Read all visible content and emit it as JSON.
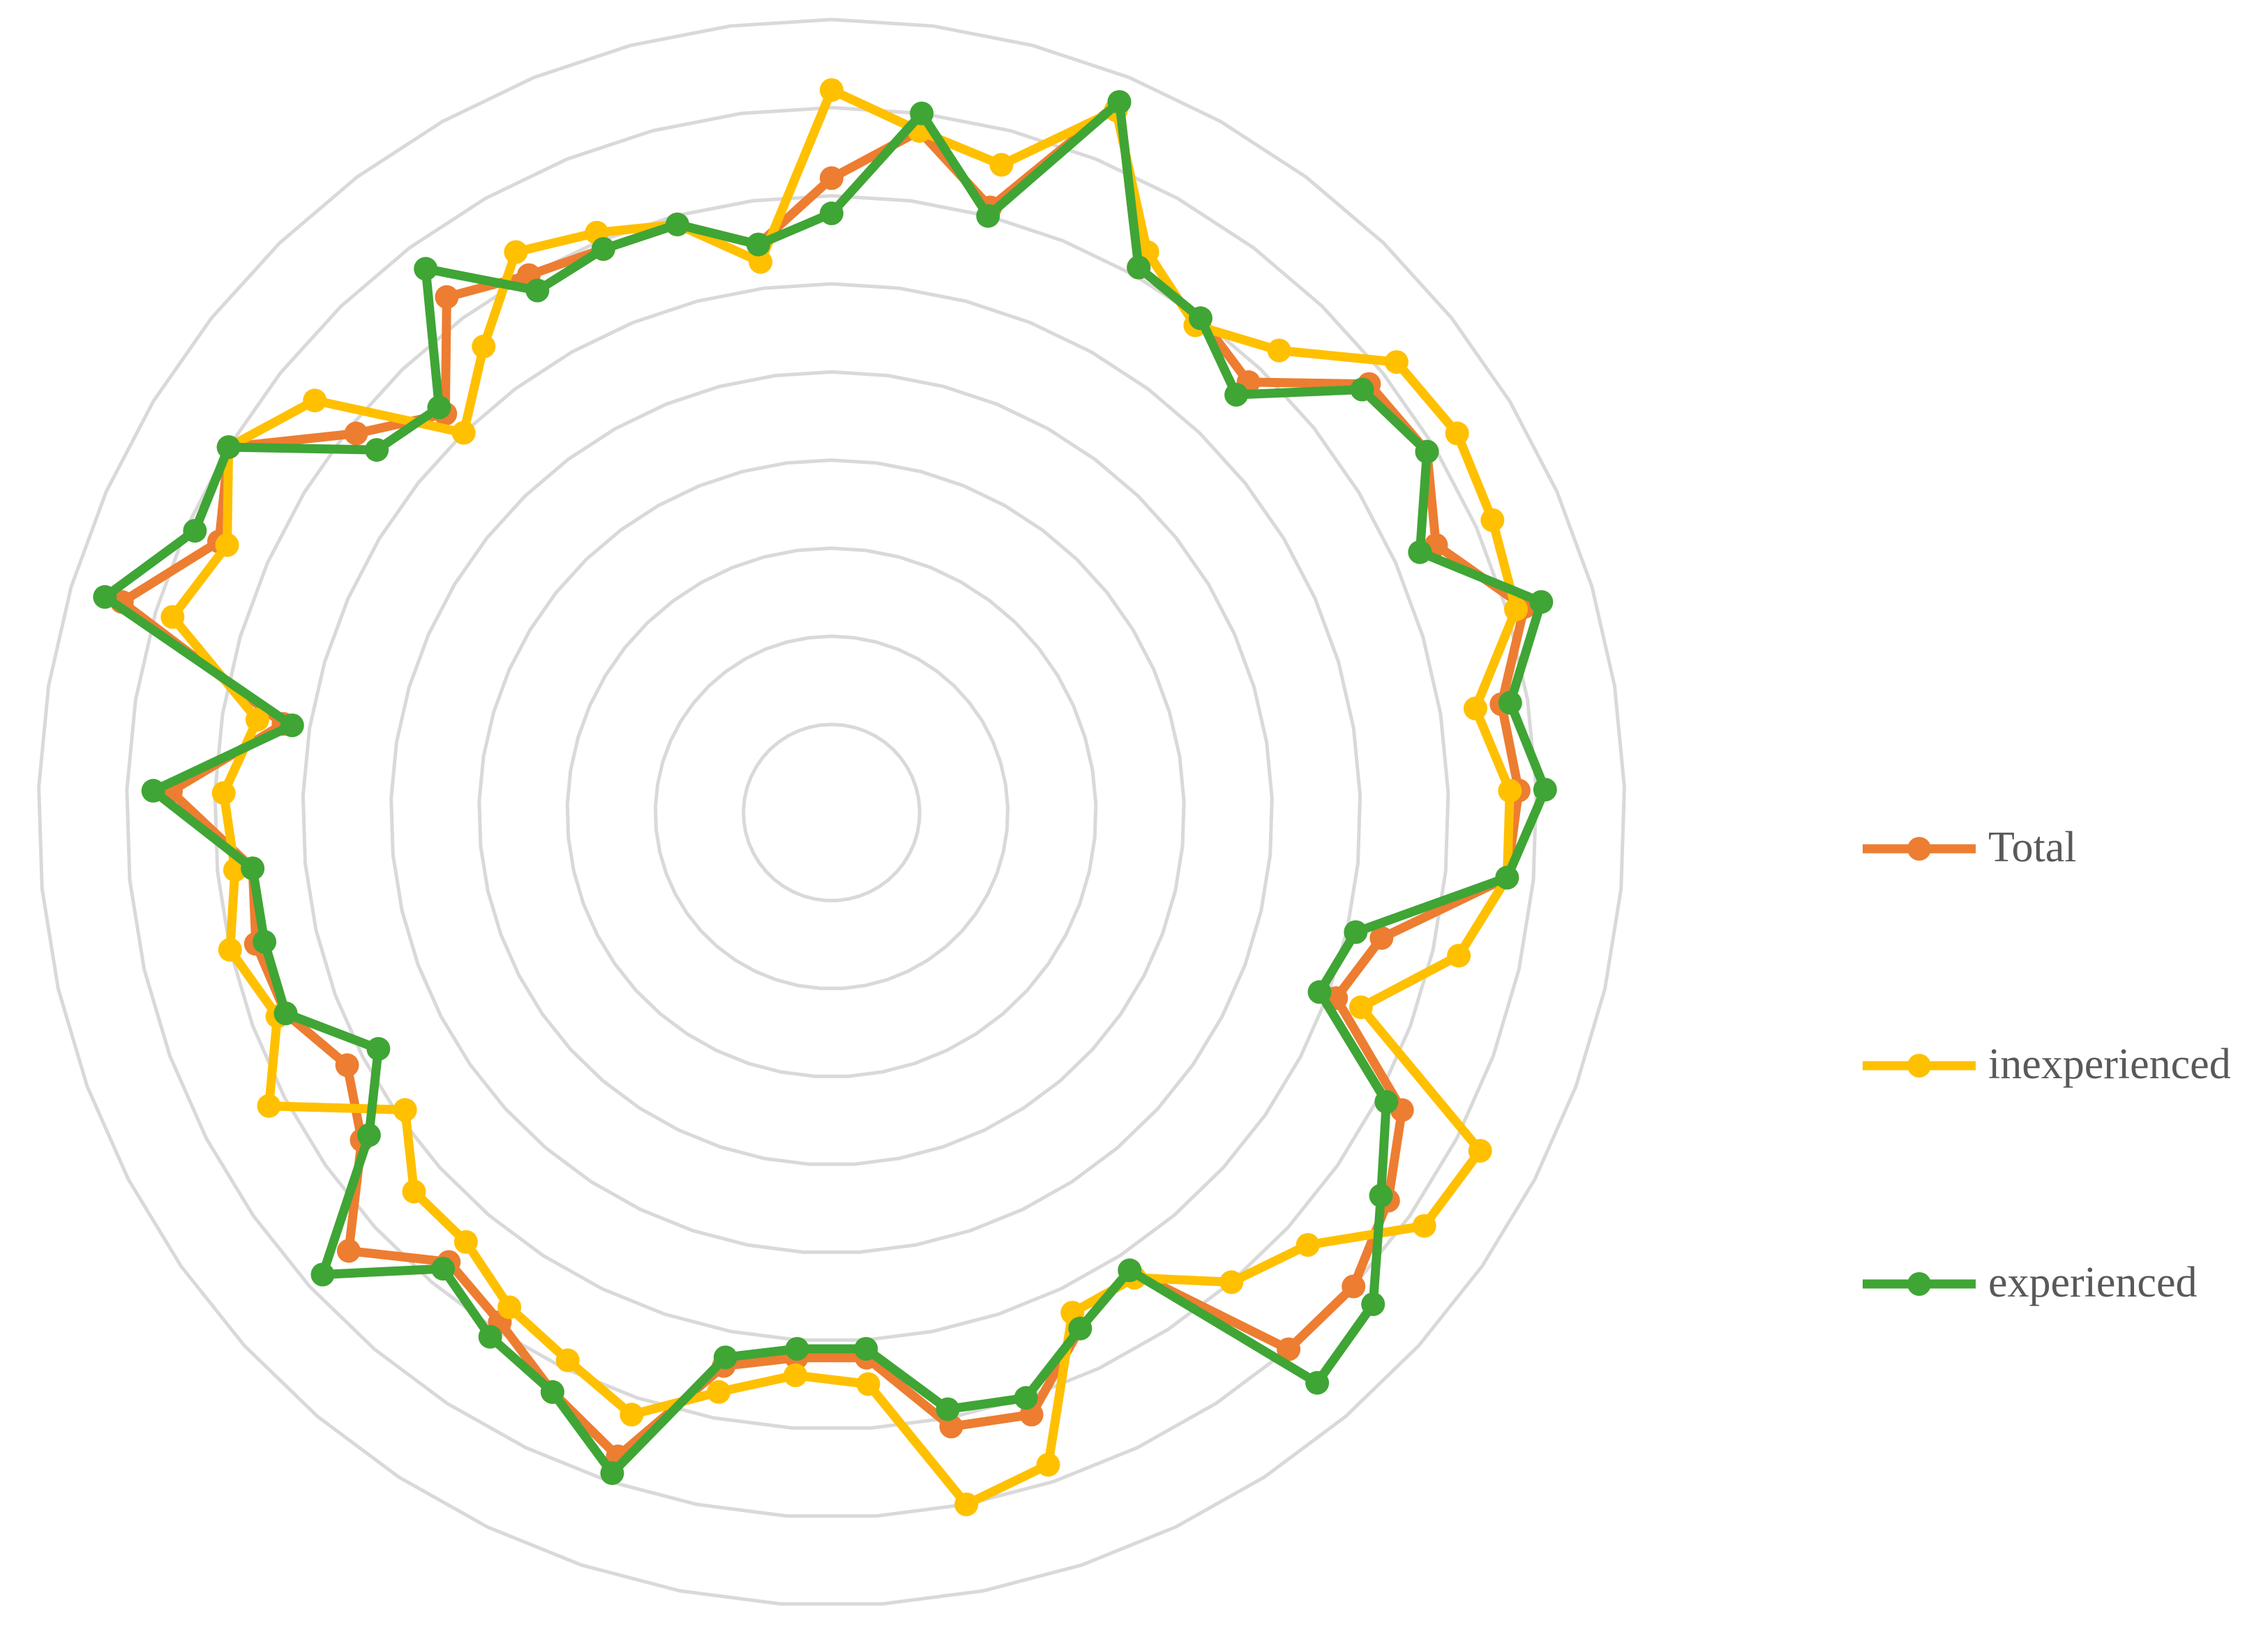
{
  "chart_data": {
    "type": "radar",
    "rlim": [
      0,
      9
    ],
    "rticks": [
      1,
      2,
      3,
      4,
      5,
      6,
      7,
      8,
      9
    ],
    "grid": true,
    "legend": "right",
    "series": [
      {
        "name": "Total",
        "color": "#ED7D31",
        "values": [
          7.2,
          7.8,
          7.1,
          8.7,
          7.1,
          7.0,
          6.8,
          7.8,
          7.9,
          7.5,
          8.2,
          7.7,
          7.8,
          7.7,
          6.4,
          6.1,
          7.3,
          7.7,
          8.0,
          8.0,
          6.2,
          6.5,
          7.2,
          7.1,
          6.2,
          6.2,
          6.4,
          7.7,
          7.3,
          6.9,
          6.7,
          7.4,
          6.5,
          6.2,
          6.6,
          6.7,
          6.6,
          7.5,
          6.3,
          8.4,
          7.6,
          8.0,
          6.9,
          6.3,
          7.3,
          7.0,
          6.9,
          6.9,
          6.5
        ]
      },
      {
        "name": "inexperienced",
        "color": "#FFC000",
        "values": [
          8.2,
          7.8,
          7.6,
          8.6,
          7.3,
          6.9,
          7.3,
          8.2,
          8.3,
          8.2,
          8.1,
          7.4,
          7.7,
          7.7,
          7.3,
          6.4,
          8.3,
          8.2,
          7.3,
          7.0,
          6.3,
          6.3,
          7.8,
          8.0,
          6.5,
          6.4,
          6.7,
          7.2,
          6.9,
          6.7,
          6.4,
          6.4,
          5.9,
          7.2,
          6.7,
          7.0,
          6.8,
          6.9,
          6.6,
          7.8,
          7.5,
          8.0,
          7.5,
          6.0,
          6.6,
          7.3,
          7.1,
          6.9,
          6.3
        ]
      },
      {
        "name": "experienced",
        "color": "#3FA535",
        "values": [
          6.8,
          8.0,
          7.0,
          8.7,
          7.1,
          7.0,
          6.6,
          7.7,
          7.9,
          7.3,
          8.4,
          7.8,
          8.1,
          7.7,
          6.1,
          5.9,
          7.1,
          7.6,
          8.3,
          8.5,
          6.2,
          6.5,
          7.0,
          6.9,
          6.1,
          6.1,
          6.3,
          7.9,
          7.3,
          7.1,
          6.8,
          7.8,
          6.4,
          5.8,
          6.6,
          6.6,
          6.6,
          7.7,
          6.2,
          8.6,
          7.9,
          8.0,
          6.6,
          6.4,
          7.7,
          6.8,
          6.9,
          6.9,
          6.5
        ]
      }
    ]
  }
}
